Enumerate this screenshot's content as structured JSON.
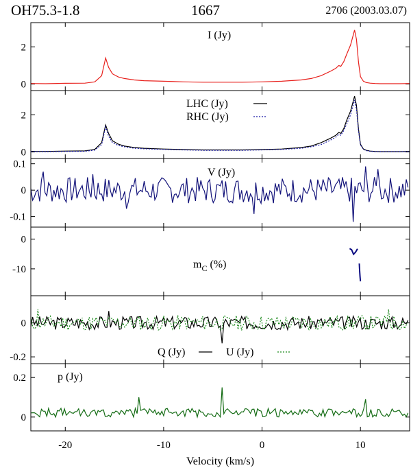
{
  "header": {
    "source": "OH75.3-1.8",
    "frequency": "1667",
    "epoch": "2706 (2003.03.07)"
  },
  "x_axis": {
    "label": "Velocity (km/s)",
    "range": [
      -23.5,
      15
    ],
    "ticks": [
      -20,
      -10,
      0,
      10
    ],
    "tick_labels": [
      "-20",
      "-10",
      "0",
      "10"
    ]
  },
  "colors": {
    "I": "#e8201c",
    "LHC": "#000000",
    "RHC": "#1a1aa8",
    "V": "#13137a",
    "mC": "#0a0a80",
    "Q": "#000000",
    "U": "#1e8a1e",
    "p": "#136b13"
  },
  "chart_data": [
    {
      "type": "line",
      "label": "I (Jy)",
      "ylim": [
        -0.35,
        3.3
      ],
      "yticks": [
        0,
        2
      ],
      "ytick_labels": [
        "0",
        "2"
      ],
      "series": [
        {
          "name": "I (Jy)",
          "key": "I",
          "dash": "",
          "x": [
            -23.5,
            -22,
            -20,
            -18,
            -17,
            -16.3,
            -15.9,
            -15.6,
            -15.2,
            -14.6,
            -14,
            -13,
            -12,
            -10,
            -8,
            -6,
            -4,
            -2,
            0,
            2,
            4,
            5,
            6,
            7,
            7.5,
            7.8,
            8,
            8.3,
            8.6,
            9,
            9.2,
            9.4,
            9.6,
            9.8,
            10,
            10.3,
            10.6,
            11,
            11.5,
            12,
            13,
            14,
            15
          ],
          "y": [
            0.03,
            0.02,
            0.04,
            0.05,
            0.12,
            0.45,
            1.4,
            0.9,
            0.55,
            0.38,
            0.3,
            0.22,
            0.18,
            0.15,
            0.12,
            0.1,
            0.1,
            0.1,
            0.12,
            0.15,
            0.22,
            0.3,
            0.45,
            0.7,
            0.85,
            1.0,
            0.95,
            1.2,
            1.6,
            2.1,
            2.5,
            2.9,
            2.4,
            1.2,
            0.4,
            0.15,
            0.08,
            0.05,
            0.03,
            0.02,
            0.02,
            0.02,
            0.03
          ]
        }
      ]
    },
    {
      "type": "line",
      "ylim": [
        -0.35,
        3.3
      ],
      "yticks": [
        0,
        2
      ],
      "ytick_labels": [
        "0",
        "2"
      ],
      "series": [
        {
          "name": "LHC (Jy)",
          "key": "LHC",
          "dash": "",
          "x": [
            -23.5,
            -22,
            -20,
            -18,
            -17,
            -16.3,
            -15.9,
            -15.6,
            -15.2,
            -14.6,
            -14,
            -13,
            -12,
            -10,
            -8,
            -6,
            -4,
            -2,
            0,
            2,
            4,
            5,
            6,
            7,
            7.5,
            7.8,
            8,
            8.3,
            8.6,
            9,
            9.2,
            9.4,
            9.6,
            9.8,
            10,
            10.3,
            10.6,
            11,
            11.5,
            12,
            13,
            14,
            15
          ],
          "y": [
            0.03,
            0.03,
            0.05,
            0.06,
            0.14,
            0.5,
            1.45,
            1.0,
            0.6,
            0.42,
            0.32,
            0.24,
            0.2,
            0.16,
            0.13,
            0.11,
            0.11,
            0.11,
            0.13,
            0.16,
            0.24,
            0.32,
            0.5,
            0.75,
            0.9,
            1.05,
            1.0,
            1.25,
            1.7,
            2.2,
            2.6,
            3.0,
            2.5,
            1.25,
            0.42,
            0.16,
            0.09,
            0.05,
            0.03,
            0.02,
            0.02,
            0.02,
            0.03
          ]
        },
        {
          "name": "RHC (Jy)",
          "key": "RHC",
          "dash": "2,2",
          "x": [
            -23.5,
            -22,
            -20,
            -18,
            -17,
            -16.3,
            -15.9,
            -15.6,
            -15.2,
            -14.6,
            -14,
            -13,
            -12,
            -10,
            -8,
            -6,
            -4,
            -2,
            0,
            2,
            4,
            5,
            6,
            7,
            7.5,
            7.8,
            8,
            8.3,
            8.6,
            9,
            9.2,
            9.4,
            9.6,
            9.8,
            10,
            10.3,
            10.6,
            11,
            11.5,
            12,
            13,
            14,
            15
          ],
          "y": [
            0.02,
            0.02,
            0.03,
            0.04,
            0.1,
            0.4,
            1.35,
            0.85,
            0.5,
            0.35,
            0.28,
            0.2,
            0.17,
            0.14,
            0.11,
            0.09,
            0.09,
            0.09,
            0.11,
            0.14,
            0.2,
            0.28,
            0.4,
            0.65,
            0.8,
            0.95,
            0.9,
            1.15,
            1.5,
            2.0,
            2.4,
            2.8,
            2.3,
            1.15,
            0.38,
            0.14,
            0.07,
            0.04,
            0.02,
            0.02,
            0.02,
            0.02,
            0.02
          ]
        }
      ],
      "legend": {
        "position": "top-center"
      }
    },
    {
      "type": "line",
      "label": "V (Jy)",
      "ylim": [
        -0.14,
        0.12
      ],
      "yticks": [
        0.1,
        0,
        -0.1
      ],
      "ytick_labels": [
        "0.1",
        "0",
        "-0.1"
      ],
      "series": [
        {
          "name": "V (Jy)",
          "key": "V",
          "dash": "",
          "noise": {
            "amp": 0.05,
            "seed": 7,
            "step": 0.18
          },
          "spikes": [
            [
              -22.2,
              0.07
            ],
            [
              -17.2,
              0.06
            ],
            [
              -13.7,
              -0.07
            ],
            [
              -0.8,
              -0.09
            ],
            [
              10.5,
              0.09
            ],
            [
              11.7,
              0.08
            ],
            [
              9.3,
              -0.12
            ]
          ]
        }
      ]
    },
    {
      "type": "line",
      "label": "mC (%)",
      "ylim": [
        -19,
        4
      ],
      "yticks": [
        0,
        -10
      ],
      "ytick_labels": [
        "0",
        "-10"
      ],
      "series": [
        {
          "name": "mC (%)",
          "key": "mC",
          "dash": "",
          "x": [
            8.9,
            9.1,
            9.3,
            9.5,
            9.7
          ],
          "y": [
            -3.2,
            -3.6,
            -5.1,
            -4.4,
            -3.3
          ]
        },
        {
          "name": "mC (%) b",
          "key": "mC",
          "dash": "",
          "x": [
            9.88,
            9.92,
            9.96,
            10.0
          ],
          "y": [
            -8.2,
            -10.5,
            -12.6,
            -14.2
          ]
        }
      ]
    },
    {
      "type": "line",
      "ylim": [
        -0.24,
        0.16
      ],
      "yticks": [
        0,
        -0.2
      ],
      "ytick_labels": [
        "0",
        "-0.2"
      ],
      "series": [
        {
          "name": "Q (Jy)",
          "key": "Q",
          "dash": "",
          "noise": {
            "amp": 0.04,
            "seed": 3,
            "step": 0.18
          },
          "spikes": [
            [
              -4.1,
              -0.12
            ],
            [
              -15.5,
              0.07
            ]
          ]
        },
        {
          "name": "U (Jy)",
          "key": "U",
          "dash": "2,2",
          "noise": {
            "amp": 0.045,
            "seed": 11,
            "step": 0.18
          },
          "spikes": [
            [
              -22.8,
              0.08
            ],
            [
              12.8,
              0.08
            ]
          ]
        }
      ],
      "legend": {
        "position": "bottom-center"
      }
    },
    {
      "type": "line",
      "label": "p (Jy)",
      "ylim": [
        -0.07,
        0.27
      ],
      "yticks": [
        0.2,
        0
      ],
      "ytick_labels": [
        "0.2",
        "0"
      ],
      "series": [
        {
          "name": "p (Jy)",
          "key": "p",
          "dash": "",
          "noise": {
            "amp": 0.055,
            "seed": 21,
            "step": 0.18,
            "abs": true
          },
          "spikes": [
            [
              -4.1,
              0.15
            ],
            [
              -12.5,
              0.1
            ],
            [
              10.5,
              0.09
            ]
          ]
        }
      ]
    }
  ]
}
